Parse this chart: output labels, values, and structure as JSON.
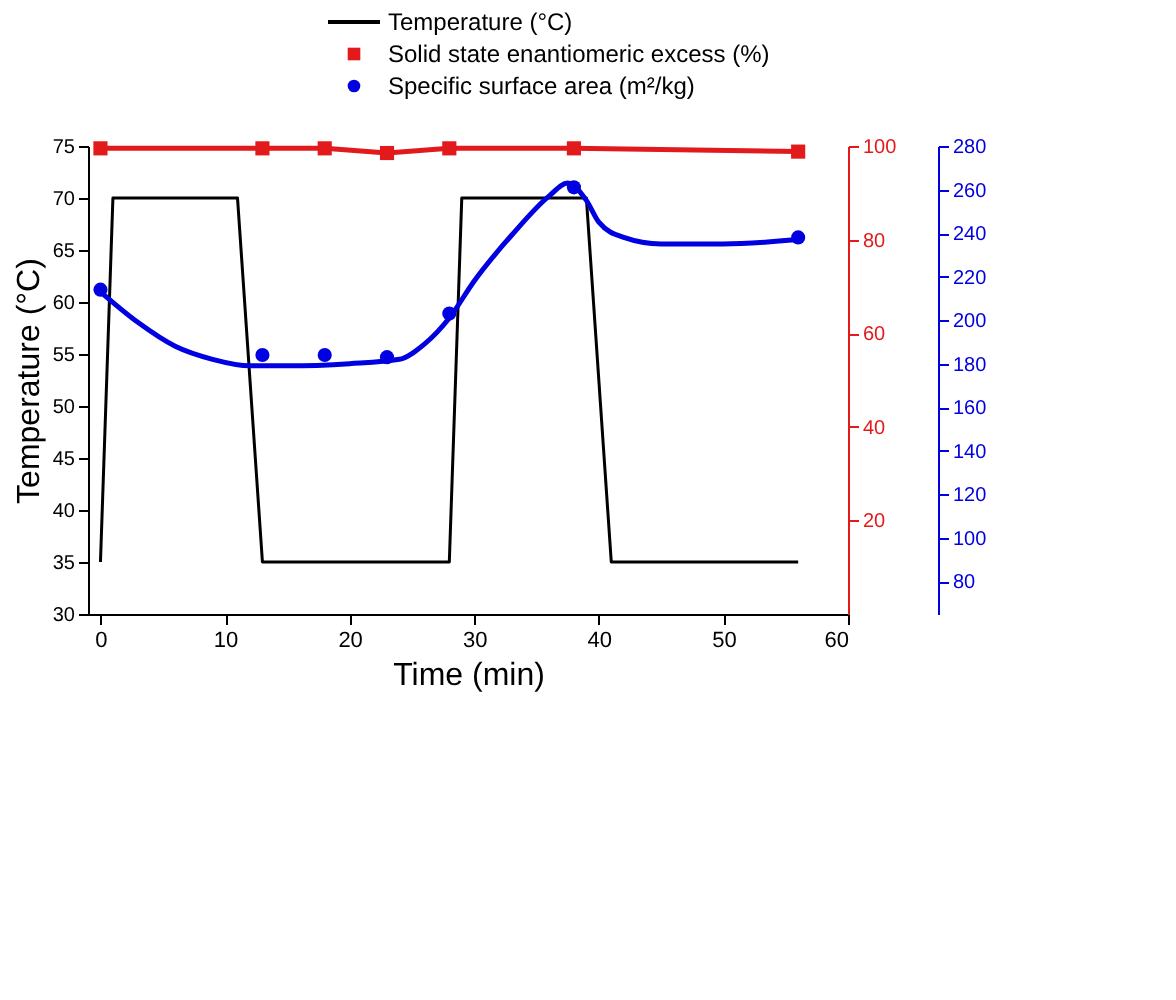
{
  "chart_data": {
    "type": "line",
    "xlabel": "Time (min)",
    "ylabel": "Temperature (°C)",
    "xlim": [
      -1,
      60
    ],
    "xticks": [
      0,
      10,
      20,
      30,
      40,
      50,
      60
    ],
    "ylim": [
      30,
      75
    ],
    "yticks": [
      30,
      35,
      40,
      45,
      50,
      55,
      60,
      65,
      70,
      75
    ],
    "y2lim": [
      0,
      100
    ],
    "y2ticks": [
      20,
      40,
      60,
      80,
      100
    ],
    "y3lim": [
      65,
      280
    ],
    "y3ticks": [
      80,
      100,
      120,
      140,
      160,
      180,
      200,
      220,
      240,
      260,
      280
    ],
    "legend": "top",
    "grid": false,
    "series": [
      {
        "name": "Temperature (°C)",
        "axis": "y",
        "marker": "none",
        "color": "#000000",
        "x": [
          0,
          1,
          11,
          13,
          28,
          29,
          39,
          41,
          56
        ],
        "values": [
          35,
          70,
          70,
          35,
          35,
          70,
          70,
          35,
          35
        ]
      },
      {
        "name": "Solid state enantiomeric excess (%)",
        "axis": "y2",
        "marker": "square",
        "color": "#e31a1c",
        "x": [
          0,
          13,
          18,
          23,
          28,
          38,
          56
        ],
        "values": [
          99.5,
          99.5,
          99.5,
          98.5,
          99.5,
          99.5,
          98.8
        ]
      },
      {
        "name": "Specific surface area (m²/kg)",
        "type": "scatter",
        "axis": "y3",
        "marker": "circle",
        "color": "#0000e0",
        "x": [
          0,
          13,
          18,
          23,
          28,
          38,
          56
        ],
        "values": [
          214,
          184,
          184,
          183,
          203,
          261,
          238
        ]
      },
      {
        "axis": "y3",
        "marker": "none",
        "color": "#0000e0",
        "x": [
          0,
          3,
          6,
          9,
          12,
          15,
          20,
          24,
          26,
          28,
          30,
          33,
          36,
          37.5,
          39,
          40,
          42,
          45,
          50,
          56
        ],
        "values": [
          213,
          199,
          188,
          182,
          179,
          179,
          180,
          182,
          189,
          201,
          218,
          239,
          257,
          263,
          255,
          245,
          238,
          235,
          235,
          237
        ]
      }
    ]
  }
}
